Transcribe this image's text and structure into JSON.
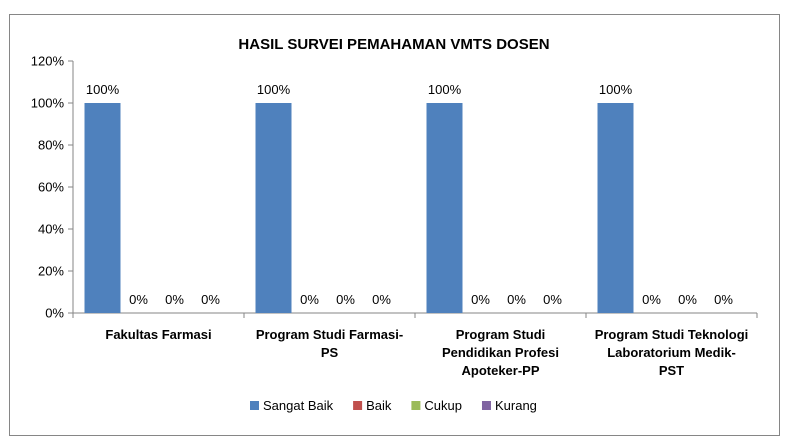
{
  "chart_data": {
    "type": "bar",
    "title": "HASIL SURVEI PEMAHAMAN VMTS DOSEN",
    "xlabel": "",
    "ylabel": "",
    "categories": [
      [
        "Fakultas Farmasi"
      ],
      [
        "Program Studi Farmasi-",
        "PS"
      ],
      [
        "Program Studi",
        "Pendidikan Profesi",
        "Apoteker-PP"
      ],
      [
        "Program Studi Teknologi",
        "Laboratorium Medik-",
        "PST"
      ]
    ],
    "series": [
      {
        "name": "Sangat Baik",
        "color": "#4f81bd",
        "values": [
          100,
          100,
          100,
          100
        ]
      },
      {
        "name": "Baik",
        "color": "#c0504d",
        "values": [
          0,
          0,
          0,
          0
        ]
      },
      {
        "name": "Cukup",
        "color": "#9bbb59",
        "values": [
          0,
          0,
          0,
          0
        ]
      },
      {
        "name": "Kurang",
        "color": "#8064a2",
        "values": [
          0,
          0,
          0,
          0
        ]
      }
    ],
    "data_labels": [
      [
        "100%",
        "0%",
        "0%",
        "0%"
      ],
      [
        "100%",
        "0%",
        "0%",
        "0%"
      ],
      [
        "100%",
        "0%",
        "0%",
        "0%"
      ],
      [
        "100%",
        "0%",
        "0%",
        "0%"
      ]
    ],
    "ylim": [
      0,
      120
    ],
    "yticks": [
      0,
      20,
      40,
      60,
      80,
      100,
      120
    ],
    "ytick_labels": [
      "0%",
      "20%",
      "40%",
      "60%",
      "80%",
      "100%",
      "120%"
    ],
    "grid": false,
    "legend_position": "bottom"
  }
}
